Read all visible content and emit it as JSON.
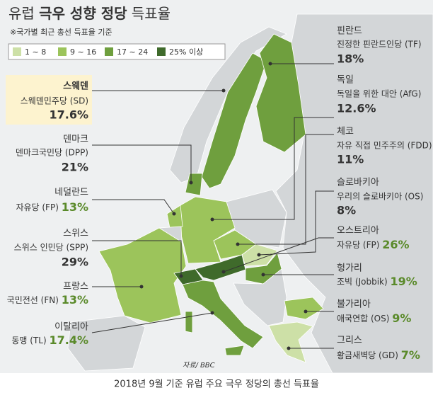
{
  "title": {
    "region": "유럽",
    "topic": "극우 성향 정당",
    "suffix": "득표율"
  },
  "subtitle": "※국가별 최근 총선 득표율 기준",
  "legend": [
    {
      "label": "1 ~ 8",
      "color": "#cde0a7"
    },
    {
      "label": "9 ~ 16",
      "color": "#9cc45b"
    },
    {
      "label": "17 ~ 24",
      "color": "#6f9f3e"
    },
    {
      "label": "25% 이상",
      "color": "#3f6a2b"
    }
  ],
  "left_countries": [
    {
      "country": "스웨덴",
      "party": "스웨덴민주당 (SD)",
      "share": "17.6%"
    },
    {
      "country": "덴마크",
      "party": "덴마크국민당 (DPP)",
      "share": "21%"
    },
    {
      "country": "네덜란드",
      "party": "자유당 (FP)",
      "share": "13%"
    },
    {
      "country": "스위스",
      "party": "스위스 인민당 (SPP)",
      "share": "29%"
    },
    {
      "country": "프랑스",
      "party": "국민전선 (FN)",
      "share": "13%"
    },
    {
      "country": "이탈리아",
      "party": "동맹 (TL)",
      "share": "17.4%"
    }
  ],
  "right_countries": [
    {
      "country": "핀란드",
      "party": "진정한 핀란드인당 (TF)",
      "share": "18%"
    },
    {
      "country": "독일",
      "party": "독일을 위한 대안 (AfG)",
      "share": "12.6%"
    },
    {
      "country": "체코",
      "party": "자유 직접 민주주의 (FDD)",
      "share": "11%"
    },
    {
      "country": "슬로바키아",
      "party": "우리의 슬로바키아 (OS)",
      "share": "8%"
    },
    {
      "country": "오스트리아",
      "party": "자유당 (FP)",
      "share": "26%"
    },
    {
      "country": "헝가리",
      "party": "조빅 (Jobbik)",
      "share": "19%"
    },
    {
      "country": "불가리아",
      "party": "애국연합 (OS)",
      "share": "9%"
    },
    {
      "country": "그리스",
      "party": "황금새벽당 (GD)",
      "share": "7%"
    }
  ],
  "source": "자료/ BBC",
  "caption": "2018년 9월 기준 유럽 주요 극우 정당의 총선 득표율"
}
